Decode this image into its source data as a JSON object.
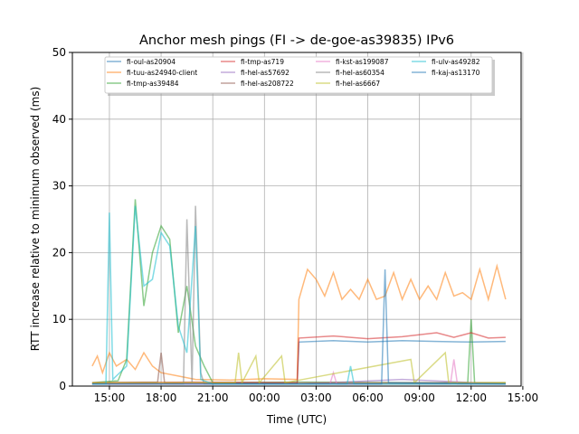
{
  "chart_data": {
    "type": "line",
    "title": "Anchor mesh pings (FI -> de-goe-as39835) IPv6",
    "xlabel": "Time (UTC)",
    "ylabel": "RTT increase relative to minimum observed (ms)",
    "x_unit": "hours since 14:00",
    "xlim": [
      -1.15,
      24.9
    ],
    "ylim": [
      0,
      50
    ],
    "grid": true,
    "legend_placement": "top-center",
    "xticks": [
      {
        "value": 1,
        "label": "15:00"
      },
      {
        "value": 4,
        "label": "18:00"
      },
      {
        "value": 7,
        "label": "21:00"
      },
      {
        "value": 10,
        "label": "00:00"
      },
      {
        "value": 13,
        "label": "03:00"
      },
      {
        "value": 16,
        "label": "06:00"
      },
      {
        "value": 19,
        "label": "09:00"
      },
      {
        "value": 22,
        "label": "12:00"
      },
      {
        "value": 25,
        "label": "15:00"
      }
    ],
    "yticks": [
      0,
      10,
      20,
      30,
      40,
      50
    ],
    "series": [
      {
        "name": "fi-oul-as20904",
        "color": "#1f77b4",
        "points": [
          [
            0,
            0.3
          ],
          [
            3,
            0.4
          ],
          [
            6,
            0.3
          ],
          [
            9,
            0.4
          ],
          [
            11.9,
            0.3
          ],
          [
            12,
            6.6
          ],
          [
            14,
            6.8
          ],
          [
            16,
            6.6
          ],
          [
            18,
            6.8
          ],
          [
            20,
            6.7
          ],
          [
            22,
            6.6
          ],
          [
            24,
            6.7
          ]
        ]
      },
      {
        "name": "fi-tuu-as24940-client",
        "color": "#ff7f0e",
        "points": [
          [
            0,
            3
          ],
          [
            0.3,
            4.5
          ],
          [
            0.6,
            2
          ],
          [
            1,
            5
          ],
          [
            1.4,
            3
          ],
          [
            2,
            4
          ],
          [
            2.5,
            2.5
          ],
          [
            3,
            5
          ],
          [
            3.5,
            3
          ],
          [
            4,
            2
          ],
          [
            5,
            1.5
          ],
          [
            6,
            1
          ],
          [
            8,
            0.9
          ],
          [
            10,
            1.1
          ],
          [
            11.9,
            1
          ],
          [
            12,
            13
          ],
          [
            12.5,
            17.5
          ],
          [
            13,
            16
          ],
          [
            13.5,
            13.5
          ],
          [
            14,
            17
          ],
          [
            14.5,
            13
          ],
          [
            15,
            14.5
          ],
          [
            15.5,
            13
          ],
          [
            16,
            16
          ],
          [
            16.5,
            13
          ],
          [
            17,
            13.5
          ],
          [
            17.5,
            17
          ],
          [
            18,
            13
          ],
          [
            18.5,
            16
          ],
          [
            19,
            13
          ],
          [
            19.5,
            15
          ],
          [
            20,
            13
          ],
          [
            20.5,
            17
          ],
          [
            21,
            13.5
          ],
          [
            21.5,
            14
          ],
          [
            22,
            13
          ],
          [
            22.5,
            17.5
          ],
          [
            23,
            13
          ],
          [
            23.5,
            18
          ],
          [
            24,
            13
          ]
        ]
      },
      {
        "name": "fi-tmp-as39484",
        "color": "#2ca02c",
        "points": [
          [
            0,
            0.5
          ],
          [
            1.5,
            0.8
          ],
          [
            2,
            4
          ],
          [
            2.5,
            28
          ],
          [
            3,
            12
          ],
          [
            3.5,
            20
          ],
          [
            4,
            24
          ],
          [
            4.5,
            22
          ],
          [
            5,
            8
          ],
          [
            5.5,
            15
          ],
          [
            6,
            6
          ],
          [
            6.5,
            3
          ],
          [
            7,
            0.5
          ],
          [
            12,
            0.6
          ],
          [
            18,
            0.5
          ],
          [
            21.8,
            0.5
          ],
          [
            22,
            10
          ],
          [
            22.2,
            0.5
          ],
          [
            24,
            0.5
          ]
        ]
      },
      {
        "name": "fi-tmp-as719",
        "color": "#d62728",
        "points": [
          [
            0,
            0.5
          ],
          [
            6,
            0.6
          ],
          [
            11.9,
            0.5
          ],
          [
            12,
            7.2
          ],
          [
            14,
            7.5
          ],
          [
            16,
            7.1
          ],
          [
            18,
            7.4
          ],
          [
            20,
            8
          ],
          [
            21,
            7.3
          ],
          [
            22,
            8
          ],
          [
            23,
            7.2
          ],
          [
            24,
            7.3
          ]
        ]
      },
      {
        "name": "fi-hel-as57692",
        "color": "#9467bd",
        "points": [
          [
            0,
            0.3
          ],
          [
            6,
            0.4
          ],
          [
            12,
            0.3
          ],
          [
            18,
            1
          ],
          [
            24,
            0.3
          ]
        ]
      },
      {
        "name": "fi-hel-as208722",
        "color": "#8c564b",
        "points": [
          [
            0,
            0.5
          ],
          [
            3.8,
            0.6
          ],
          [
            4,
            5
          ],
          [
            4.2,
            0.5
          ],
          [
            12,
            0.5
          ],
          [
            24,
            0.5
          ]
        ]
      },
      {
        "name": "fi-kst-as199087",
        "color": "#e377c2",
        "points": [
          [
            0,
            0.3
          ],
          [
            13.8,
            0.3
          ],
          [
            14,
            2
          ],
          [
            14.2,
            0.3
          ],
          [
            20.8,
            0.3
          ],
          [
            21,
            4
          ],
          [
            21.2,
            0.3
          ],
          [
            24,
            0.3
          ]
        ]
      },
      {
        "name": "fi-hel-as60354",
        "color": "#7f7f7f",
        "points": [
          [
            0,
            0.3
          ],
          [
            5.3,
            0.3
          ],
          [
            5.5,
            25
          ],
          [
            5.8,
            0.5
          ],
          [
            6,
            27
          ],
          [
            6.3,
            2
          ],
          [
            6.5,
            0.3
          ],
          [
            24,
            0.3
          ]
        ]
      },
      {
        "name": "fi-hel-as6667",
        "color": "#bcbd22",
        "points": [
          [
            0,
            0.5
          ],
          [
            8.3,
            0.5
          ],
          [
            8.5,
            5
          ],
          [
            8.7,
            0.5
          ],
          [
            9.5,
            4.5
          ],
          [
            9.7,
            0.5
          ],
          [
            11,
            4.5
          ],
          [
            11.2,
            0.5
          ],
          [
            18.5,
            4
          ],
          [
            18.7,
            0.5
          ],
          [
            20.5,
            5
          ],
          [
            20.7,
            0.5
          ],
          [
            24,
            0.5
          ]
        ]
      },
      {
        "name": "fi-ulv-as49282",
        "color": "#17becf",
        "points": [
          [
            0,
            0.3
          ],
          [
            0.8,
            0.3
          ],
          [
            1,
            26
          ],
          [
            1.2,
            1
          ],
          [
            2,
            3
          ],
          [
            2.5,
            27
          ],
          [
            3,
            15
          ],
          [
            3.5,
            16
          ],
          [
            4,
            23
          ],
          [
            4.5,
            21
          ],
          [
            5,
            9
          ],
          [
            5.5,
            5
          ],
          [
            6,
            24
          ],
          [
            6.3,
            1
          ],
          [
            7,
            0.3
          ],
          [
            14.8,
            0.3
          ],
          [
            15,
            3
          ],
          [
            15.2,
            0.3
          ],
          [
            24,
            0.3
          ]
        ]
      },
      {
        "name": "fi-kaj-as13170",
        "color": "#1f77b4",
        "points": [
          [
            0,
            0.3
          ],
          [
            16.8,
            0.3
          ],
          [
            17,
            17.5
          ],
          [
            17.2,
            0.5
          ],
          [
            24,
            0.3
          ]
        ]
      }
    ]
  }
}
